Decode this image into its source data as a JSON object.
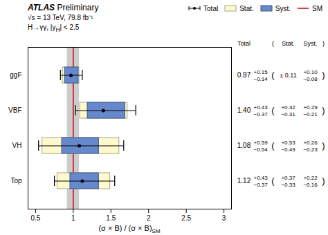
{
  "chart_data": {
    "type": "errorbar",
    "orientation": "horizontal",
    "experiment_label": [
      "ATLAS",
      "Preliminary"
    ],
    "annotations": [
      [
        "√s = 13 TeV, 79.8 fb⁻¹"
      ],
      [
        "H→γγ, |y",
        "H",
        "| < 2.5"
      ]
    ],
    "xlabel": [
      "(σ × B) / (σ × B)",
      "SM"
    ],
    "categories": [
      "ggF",
      "VBF",
      "VH",
      "Top"
    ],
    "values": [
      0.97,
      1.4,
      1.08,
      1.12
    ],
    "value_labels": [
      "0.97",
      "1.40",
      "1.08",
      "1.12"
    ],
    "series": [
      {
        "name": "Total",
        "type": "errorbar",
        "err_up": [
          0.15,
          0.43,
          0.59,
          0.43
        ],
        "err_dn": [
          0.14,
          0.37,
          0.54,
          0.37
        ],
        "labels_up": [
          "+0.15",
          "+0.43",
          "+0.59",
          "+0.43"
        ],
        "labels_dn": [
          "−0.14",
          "−0.37",
          "−0.54",
          "−0.37"
        ]
      },
      {
        "name": "Stat.",
        "type": "box",
        "color": "#FFFACD",
        "err_up": [
          0.11,
          0.32,
          0.53,
          0.37
        ],
        "err_dn": [
          0.11,
          0.31,
          0.49,
          0.33
        ],
        "labels_up": [
          "± 0.11",
          "+0.32",
          "+0.53",
          "+0.37"
        ],
        "labels_dn": [
          null,
          "−0.31",
          "−0.49",
          "−0.33"
        ]
      },
      {
        "name": "Syst.",
        "type": "box",
        "color": "#6688CC",
        "err_up": [
          0.1,
          0.29,
          0.26,
          0.22
        ],
        "err_dn": [
          0.08,
          0.21,
          0.23,
          0.16
        ],
        "labels_up": [
          "+0.10",
          "+0.29",
          "+0.26",
          "+0.22"
        ],
        "labels_dn": [
          "−0.08",
          "−0.21",
          "−0.23",
          "−0.16"
        ]
      }
    ],
    "reference": {
      "name": "SM",
      "value": 1,
      "band_half": 0.08,
      "color": "#CC0000",
      "band_color": "#BBBBBB"
    },
    "table_brackets": [
      "(",
      ")"
    ],
    "xlim": [
      0.4,
      3.1
    ],
    "xticks": [
      0.5,
      1,
      1.5,
      2,
      2.5,
      3
    ],
    "grid": false,
    "legend": "top"
  }
}
